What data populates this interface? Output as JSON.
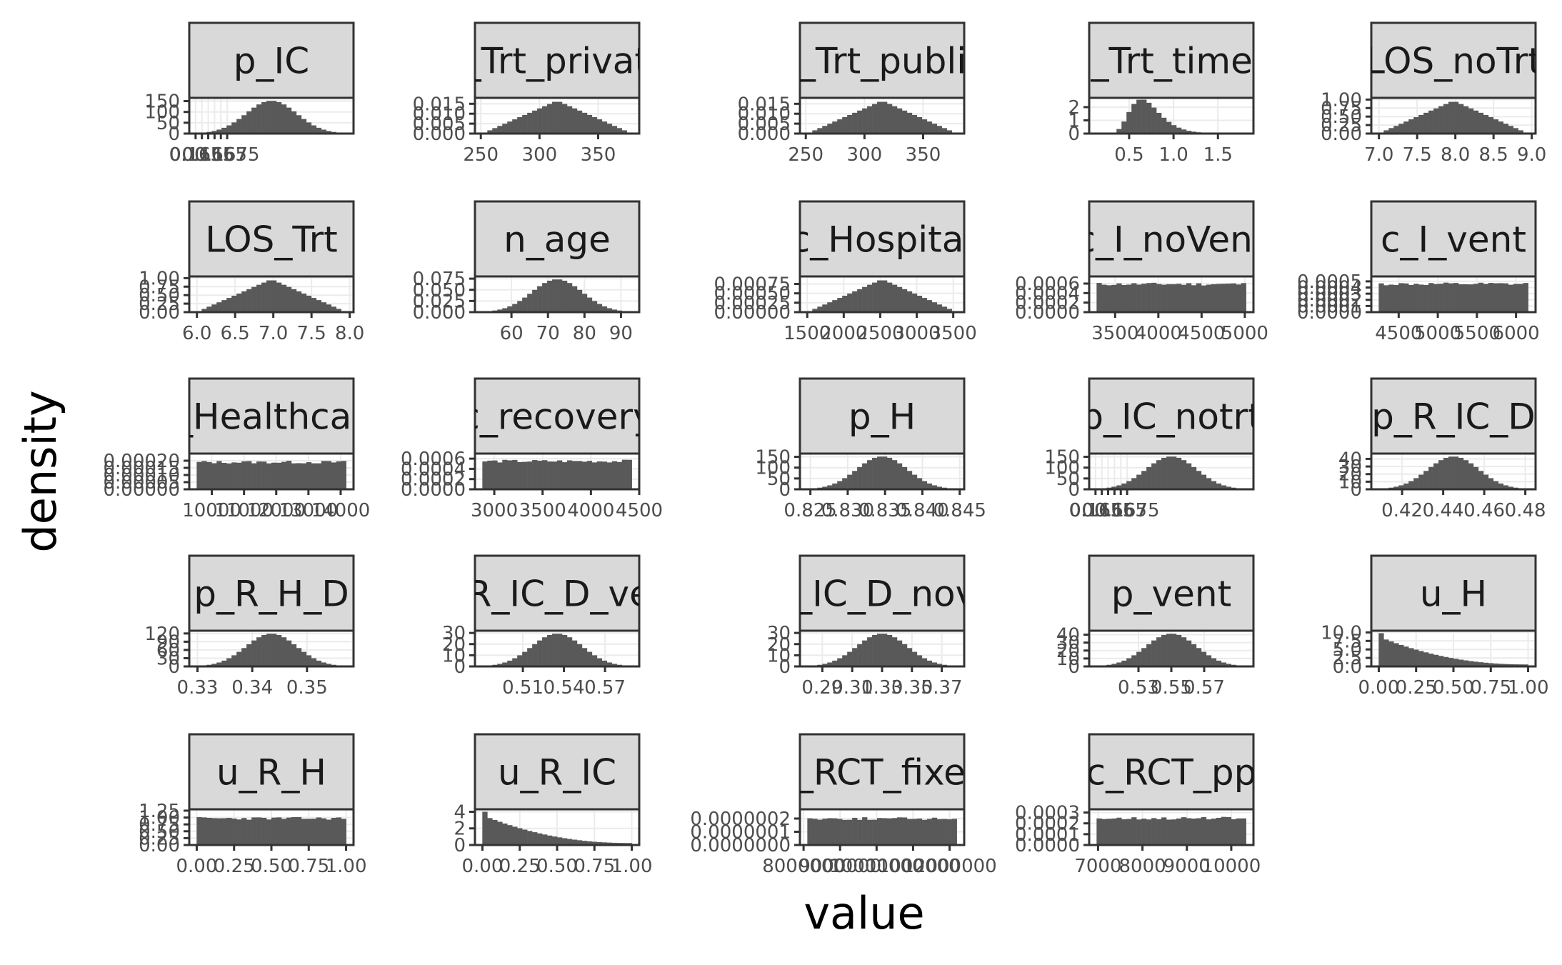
{
  "chart_data": {
    "type": "bar",
    "xlabel": "value",
    "ylabel": "density",
    "grid": true,
    "legend": "none",
    "colors": {
      "bar": "#595959",
      "strip_fill": "#d9d9d9",
      "strip_border": "#333333",
      "grid": "#ebebeb"
    },
    "panels": [
      {
        "title": "p_IC",
        "dist": "normal",
        "xlim": [
          0.1645,
          0.1775
        ],
        "peak": [
          0.1653,
          0.1656
        ],
        "xticks": [
          0.165,
          0.1655,
          0.166,
          0.1665,
          0.167,
          0.1675
        ],
        "xtick_labels": [
          "0.165",
          "0.1655",
          "0.166",
          "0.1665",
          "0.167",
          "0.1675"
        ],
        "ylim": [
          0,
          165
        ],
        "yticks": [
          0,
          50,
          100,
          150
        ],
        "ytick_labels": [
          "0",
          "50",
          "100",
          "150"
        ]
      },
      {
        "title": "c_Trt_private",
        "dist": "triangle",
        "xlim": [
          245,
          385
        ],
        "peak": [
          315,
          0.0155
        ],
        "xticks": [
          250,
          300,
          350
        ],
        "xtick_labels": [
          "250",
          "300",
          "350"
        ],
        "ylim": [
          0,
          0.018
        ],
        "yticks": [
          0,
          0.005,
          0.01,
          0.015
        ],
        "ytick_labels": [
          "0.000",
          "0.005",
          "0.010",
          "0.015"
        ]
      },
      {
        "title": "c_Trt_public",
        "dist": "triangle",
        "xlim": [
          245,
          385
        ],
        "peak": [
          318,
          0.0155
        ],
        "xticks": [
          250,
          300,
          350
        ],
        "xtick_labels": [
          "250",
          "300",
          "350"
        ],
        "ylim": [
          0,
          0.018
        ],
        "yticks": [
          0,
          0.005,
          0.01,
          0.015
        ],
        "ytick_labels": [
          "0.000",
          "0.005",
          "0.010",
          "0.015"
        ]
      },
      {
        "title": "c_Trt_times",
        "dist": "lognormal",
        "xlim": [
          0.05,
          1.9
        ],
        "peak": [
          0.55,
          2.35
        ],
        "xticks": [
          0.5,
          1.0,
          1.5
        ],
        "xtick_labels": [
          "0.5",
          "1.0",
          "1.5"
        ],
        "ylim": [
          0,
          2.7
        ],
        "yticks": [
          0,
          1,
          2
        ],
        "ytick_labels": [
          "0",
          "1",
          "2"
        ]
      },
      {
        "title": "LOS_noTrt",
        "dist": "triangle",
        "xlim": [
          6.9,
          9.05
        ],
        "peak": [
          8.0,
          1.0
        ],
        "xticks": [
          7.0,
          7.5,
          8.0,
          8.5,
          9.0
        ],
        "xtick_labels": [
          "7.0",
          "7.5",
          "8.0",
          "8.5",
          "9.0"
        ],
        "ylim": [
          0,
          1.05
        ],
        "yticks": [
          0,
          0.25,
          0.5,
          0.75,
          1.0
        ],
        "ytick_labels": [
          "0.00",
          "0.25",
          "0.50",
          "0.75",
          "1.00"
        ]
      },
      {
        "title": "LOS_Trt",
        "dist": "triangle",
        "xlim": [
          5.9,
          8.05
        ],
        "peak": [
          7.0,
          1.0
        ],
        "xticks": [
          6.0,
          6.5,
          7.0,
          7.5,
          8.0
        ],
        "xtick_labels": [
          "6.0",
          "6.5",
          "7.0",
          "7.5",
          "8.0"
        ],
        "ylim": [
          0,
          1.05
        ],
        "yticks": [
          0,
          0.25,
          0.5,
          0.75,
          1.0
        ],
        "ytick_labels": [
          "0.00",
          "0.25",
          "0.50",
          "0.75",
          "1.00"
        ]
      },
      {
        "title": "n_age",
        "dist": "normal",
        "xlim": [
          50,
          95
        ],
        "peak": [
          71.5,
          0.072
        ],
        "xticks": [
          60,
          70,
          80,
          90
        ],
        "xtick_labels": [
          "60",
          "70",
          "80",
          "90"
        ],
        "ylim": [
          0,
          0.08
        ],
        "yticks": [
          0,
          0.025,
          0.05,
          0.075
        ],
        "ytick_labels": [
          "0.000",
          "0.025",
          "0.050",
          "0.075"
        ]
      },
      {
        "title": "c_Hospital",
        "dist": "triangle",
        "xlim": [
          1400,
          3650
        ],
        "peak": [
          2500,
          0.00082
        ],
        "xticks": [
          1500,
          2000,
          2500,
          3000,
          3500
        ],
        "xtick_labels": [
          "1500",
          "2000",
          "2500",
          "3000",
          "3500"
        ],
        "ylim": [
          0,
          0.00095
        ],
        "yticks": [
          0,
          0.00025,
          0.0005,
          0.00075
        ],
        "ytick_labels": [
          "0.00000",
          "0.00025",
          "0.00050",
          "0.00075"
        ]
      },
      {
        "title": "c_I_noVent",
        "dist": "uniform",
        "xlim": [
          3200,
          5100
        ],
        "peak": [
          4100,
          0.00062
        ],
        "xticks": [
          3500,
          4000,
          4500,
          5000
        ],
        "xtick_labels": [
          "3500",
          "4000",
          "4500",
          "5000"
        ],
        "ylim": [
          0,
          0.00075
        ],
        "yticks": [
          0,
          0.0002,
          0.0004,
          0.0006
        ],
        "ytick_labels": [
          "0.0000",
          "0.0002",
          "0.0004",
          "0.0006"
        ]
      },
      {
        "title": "c_I_vent",
        "dist": "uniform",
        "xlim": [
          4150,
          6250
        ],
        "peak": [
          5200,
          0.00048
        ],
        "xticks": [
          4500,
          5000,
          5500,
          6000
        ],
        "xtick_labels": [
          "4500",
          "5000",
          "5500",
          "6000"
        ],
        "ylim": [
          0,
          0.00058
        ],
        "yticks": [
          0,
          0.0001,
          0.0002,
          0.0003,
          0.0004,
          0.0005
        ],
        "ytick_labels": [
          "0.0000",
          "0.0001",
          "0.0002",
          "0.0003",
          "0.0004",
          "0.0005"
        ]
      },
      {
        "title": "c_Healthcare",
        "dist": "uniform",
        "xlim": [
          9300,
          14400
        ],
        "peak": [
          11800,
          0.0002
        ],
        "xticks": [
          10000,
          11000,
          12000,
          13000,
          14000
        ],
        "xtick_labels": [
          "10000",
          "11000",
          "12000",
          "13000",
          "14000"
        ],
        "ylim": [
          0,
          0.00025
        ],
        "yticks": [
          0,
          5e-05,
          0.0001,
          0.00015,
          0.0002
        ],
        "ytick_labels": [
          "0.00000",
          "0.00005",
          "0.00010",
          "0.00015",
          "0.00020"
        ]
      },
      {
        "title": "c_recovery",
        "dist": "uniform",
        "xlim": [
          2800,
          4500
        ],
        "peak": [
          3650,
          0.00058
        ],
        "xticks": [
          3000,
          3500,
          4000,
          4500
        ],
        "xtick_labels": [
          "3000",
          "3500",
          "4000",
          "4500"
        ],
        "ylim": [
          0,
          0.0007
        ],
        "yticks": [
          0,
          0.0002,
          0.0004,
          0.0006
        ],
        "ytick_labels": [
          "0.0000",
          "0.0002",
          "0.0004",
          "0.0006"
        ]
      },
      {
        "title": "p_H",
        "dist": "normal",
        "xlim": [
          0.8236,
          0.8456
        ],
        "peak": [
          0.8345,
          0.0028
        ],
        "xticks": [
          0.825,
          0.83,
          0.835,
          0.84,
          0.845
        ],
        "xtick_labels": [
          "0.825",
          "0.830",
          "0.835",
          "0.840",
          "0.845"
        ],
        "ylim": [
          0,
          165
        ],
        "yticks": [
          0,
          50,
          100,
          150
        ],
        "ytick_labels": [
          "0",
          "50",
          "100",
          "150"
        ]
      },
      {
        "title": "p_IC_notrt",
        "dist": "normal",
        "xlim": [
          0.1645,
          0.1775
        ],
        "peak": [
          0.1655,
          0.1658
        ],
        "xticks": [
          0.165,
          0.1655,
          0.166,
          0.1665,
          0.167,
          0.1675
        ],
        "xtick_labels": [
          "0.165",
          "0.1655",
          "0.166",
          "0.1665",
          "0.167",
          "0.1675"
        ],
        "ylim": [
          0,
          165
        ],
        "yticks": [
          0,
          50,
          100,
          150
        ],
        "ytick_labels": [
          "0",
          "50",
          "100",
          "150"
        ]
      },
      {
        "title": "p_R_IC_D",
        "dist": "normal",
        "xlim": [
          0.405,
          0.485
        ],
        "peak": [
          0.445,
          0.009
        ],
        "xticks": [
          0.42,
          0.44,
          0.46,
          0.48
        ],
        "xtick_labels": [
          "0.42",
          "0.44",
          "0.46",
          "0.48"
        ],
        "ylim": [
          0,
          47
        ],
        "yticks": [
          0,
          10,
          20,
          30,
          40
        ],
        "ytick_labels": [
          "0",
          "10",
          "20",
          "30",
          "40"
        ]
      },
      {
        "title": "p_R_H_D",
        "dist": "normal",
        "xlim": [
          0.3285,
          0.3585
        ],
        "peak": [
          0.3425,
          0.0033
        ],
        "xticks": [
          0.33,
          0.34,
          0.35
        ],
        "xtick_labels": [
          "0.33",
          "0.34",
          "0.35"
        ],
        "ylim": [
          0,
          130
        ],
        "yticks": [
          0,
          30,
          60,
          90,
          120
        ],
        "ytick_labels": [
          "0",
          "30",
          "60",
          "90",
          "120"
        ]
      },
      {
        "title": "p_R_IC_D_vent",
        "dist": "normal",
        "xlim": [
          0.475,
          0.595
        ],
        "peak": [
          0.54,
          0.0135
        ],
        "xticks": [
          0.51,
          0.54,
          0.57
        ],
        "xtick_labels": [
          "0.51",
          "0.54",
          "0.57"
        ],
        "ylim": [
          0,
          32
        ],
        "yticks": [
          0,
          10,
          20,
          30
        ],
        "ytick_labels": [
          "0",
          "10",
          "20",
          "30"
        ]
      },
      {
        "title": "p_R_IC_D_novent",
        "dist": "normal",
        "xlim": [
          0.275,
          0.385
        ],
        "peak": [
          0.33,
          0.0135
        ],
        "xticks": [
          0.29,
          0.31,
          0.33,
          0.35,
          0.37
        ],
        "xtick_labels": [
          "0.29",
          "0.31",
          "0.33",
          "0.35",
          "0.37"
        ],
        "ylim": [
          0,
          32
        ],
        "yticks": [
          0,
          10,
          20,
          30
        ],
        "ytick_labels": [
          "0",
          "10",
          "20",
          "30"
        ]
      },
      {
        "title": "p_vent",
        "dist": "normal",
        "xlim": [
          0.5,
          0.6
        ],
        "peak": [
          0.55,
          0.0095
        ],
        "xticks": [
          0.53,
          0.55,
          0.57
        ],
        "xtick_labels": [
          "0.53",
          "0.55",
          "0.57"
        ],
        "ylim": [
          0,
          45
        ],
        "yticks": [
          0,
          10,
          20,
          30,
          40
        ],
        "ytick_labels": [
          "0",
          "10",
          "20",
          "30",
          "40"
        ]
      },
      {
        "title": "u_H",
        "dist": "decay",
        "xlim": [
          -0.05,
          1.05
        ],
        "peak": [
          0.0,
          10.0
        ],
        "xticks": [
          0,
          0.25,
          0.5,
          0.75,
          1.0
        ],
        "xtick_labels": [
          "0.00",
          "0.25",
          "0.50",
          "0.75",
          "1.00"
        ],
        "ylim": [
          0,
          10.5
        ],
        "yticks": [
          0,
          2.5,
          5,
          7.5,
          10
        ],
        "ytick_labels": [
          "0.0",
          "2.5",
          "5.0",
          "7.5",
          "10.0"
        ]
      },
      {
        "title": "u_R_H",
        "dist": "uniform",
        "xlim": [
          -0.05,
          1.05
        ],
        "peak": [
          0.5,
          1.02
        ],
        "xticks": [
          0,
          0.25,
          0.5,
          0.75,
          1.0
        ],
        "xtick_labels": [
          "0.00",
          "0.25",
          "0.50",
          "0.75",
          "1.00"
        ],
        "ylim": [
          0,
          1.3
        ],
        "yticks": [
          0,
          0.25,
          0.5,
          0.75,
          1.0,
          1.25
        ],
        "ytick_labels": [
          "0.00",
          "0.25",
          "0.50",
          "0.75",
          "1.00",
          "1.25"
        ]
      },
      {
        "title": "u_R_IC",
        "dist": "decay",
        "xlim": [
          -0.05,
          1.05
        ],
        "peak": [
          0.0,
          4.0
        ],
        "xticks": [
          0,
          0.25,
          0.5,
          0.75,
          1.0
        ],
        "xtick_labels": [
          "0.00",
          "0.25",
          "0.50",
          "0.75",
          "1.00"
        ],
        "ylim": [
          0,
          4.3
        ],
        "yticks": [
          0,
          2,
          4
        ],
        "ytick_labels": [
          "0",
          "2",
          "4"
        ]
      },
      {
        "title": "c_RCT_fixed",
        "dist": "uniform",
        "xlim": [
          7900000,
          12400000
        ],
        "peak": [
          10100000,
          2.1e-07
        ],
        "xticks": [
          8000000,
          9000000,
          10000000,
          11000000,
          12000000
        ],
        "xtick_labels": [
          "8000000",
          "9000000",
          "10000000",
          "11000000",
          "12000000"
        ],
        "ylim": [
          0,
          2.7e-07
        ],
        "yticks": [
          0,
          1e-07,
          2e-07
        ],
        "ytick_labels": [
          "0.0000000",
          "0.0000001",
          "0.0000002"
        ]
      },
      {
        "title": "c_RCT_pp",
        "dist": "uniform",
        "xlim": [
          6800,
          10500
        ],
        "peak": [
          8650,
          0.00026
        ],
        "xticks": [
          7000,
          8000,
          9000,
          10000
        ],
        "xtick_labels": [
          "7000",
          "8000",
          "9000",
          "10000"
        ],
        "ylim": [
          0,
          0.00033
        ],
        "yticks": [
          0,
          0.0001,
          0.0002,
          0.0003
        ],
        "ytick_labels": [
          "0.0000",
          "0.0001",
          "0.0002",
          "0.0003"
        ]
      }
    ]
  }
}
